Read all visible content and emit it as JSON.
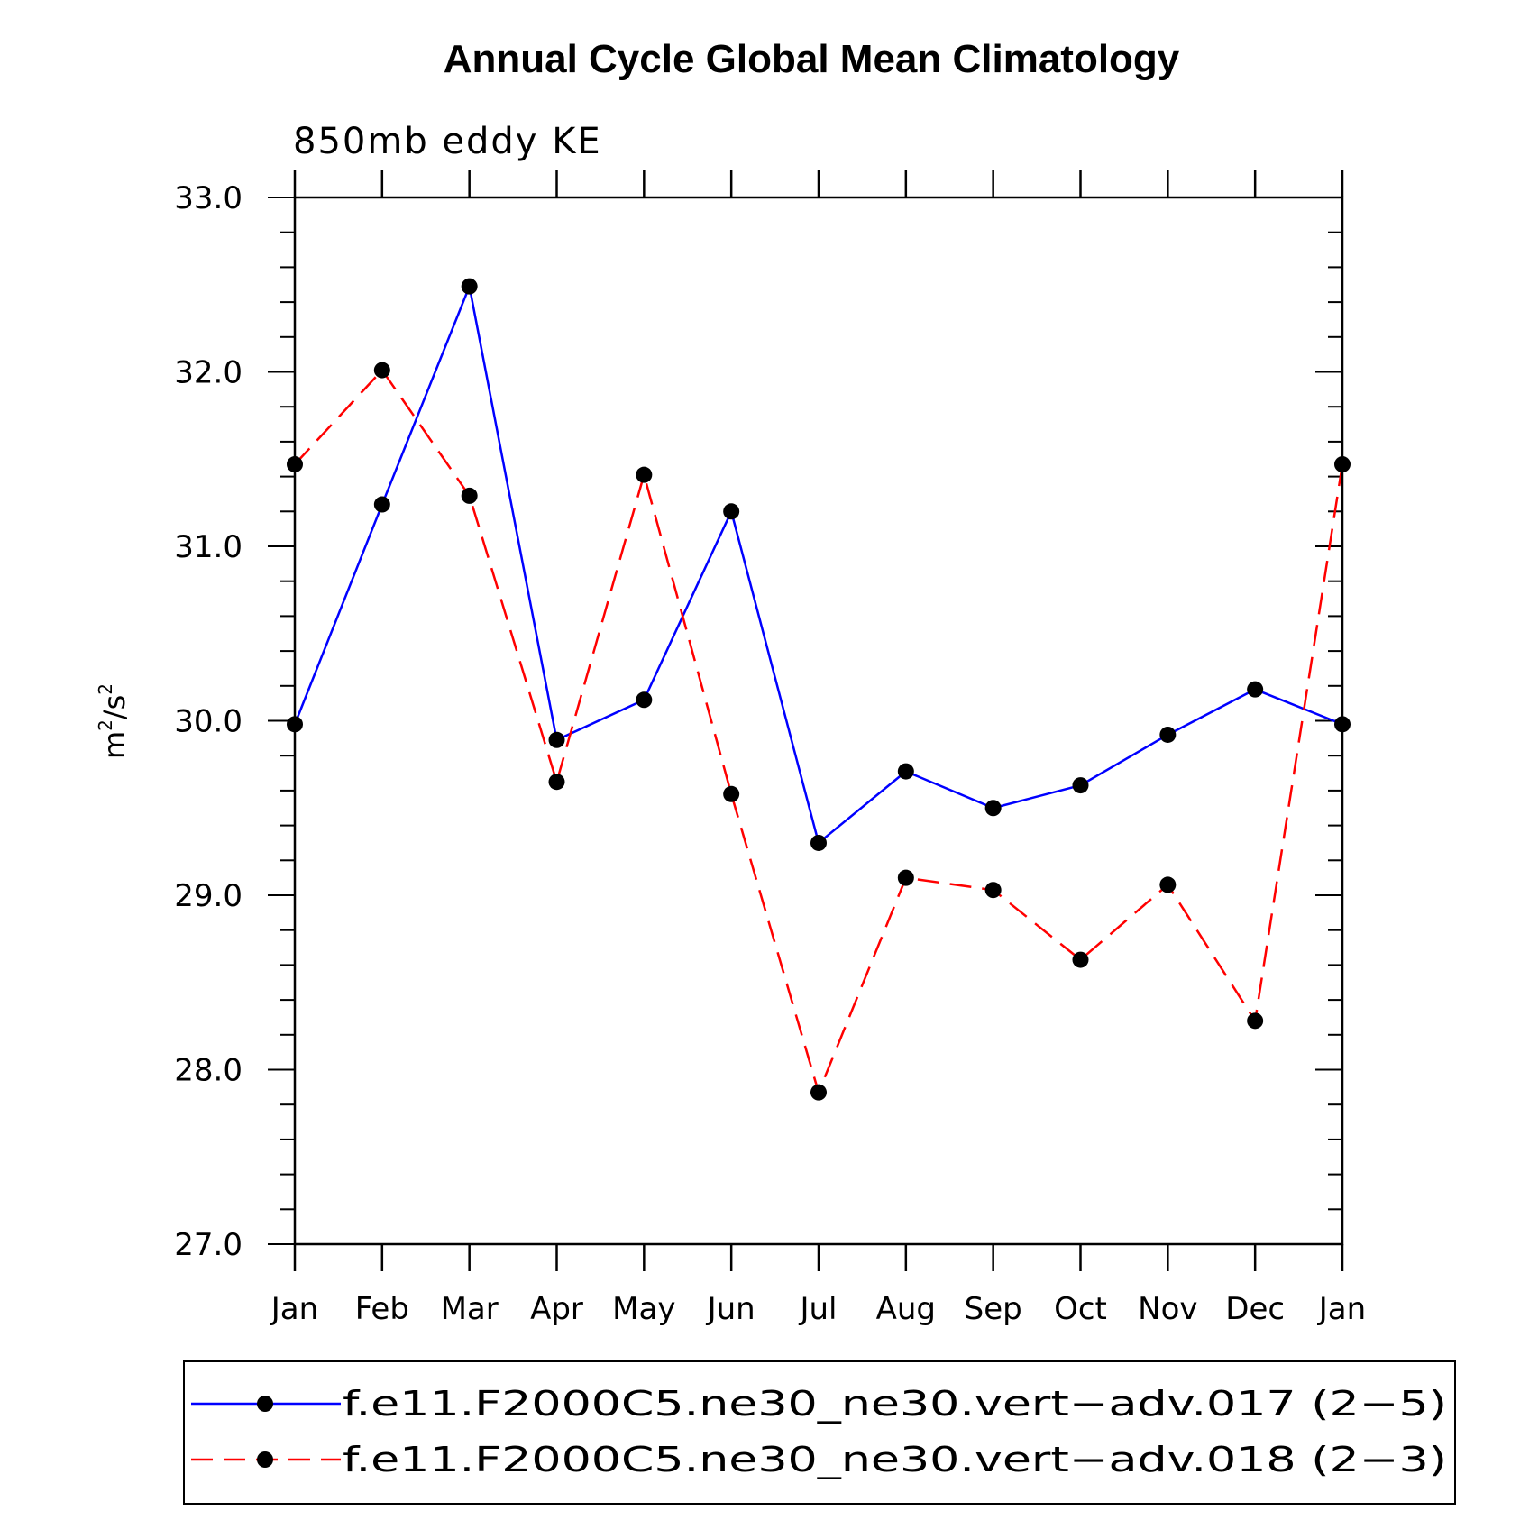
{
  "chart_data": {
    "type": "line",
    "title": "Annual Cycle Global Mean Climatology",
    "subtitle": "850mb eddy KE",
    "ylabel_base": "m",
    "ylabel_exp1": "2",
    "ylabel_mid": "/s",
    "ylabel_exp2": "2",
    "xlabel": "",
    "categories": [
      "Jan",
      "Feb",
      "Mar",
      "Apr",
      "May",
      "Jun",
      "Jul",
      "Aug",
      "Sep",
      "Oct",
      "Nov",
      "Dec",
      "Jan"
    ],
    "ylim": [
      27.0,
      33.0
    ],
    "yticks": [
      "27.0",
      "28.0",
      "29.0",
      "30.0",
      "31.0",
      "32.0",
      "33.0"
    ],
    "grid": false,
    "legend_position": "bottom",
    "series": [
      {
        "name": "f.e11.F2000C5.ne30_ne30.vert−adv.017 (2−5)",
        "color": "#0000ff",
        "style": "solid",
        "values": [
          29.98,
          31.24,
          32.49,
          29.89,
          30.12,
          31.2,
          29.3,
          29.71,
          29.5,
          29.63,
          29.92,
          30.18,
          29.98
        ]
      },
      {
        "name": "f.e11.F2000C5.ne30_ne30.vert−adv.018 (2−3)",
        "color": "#ff0000",
        "style": "dashed",
        "values": [
          31.47,
          32.01,
          31.29,
          29.65,
          31.41,
          29.58,
          27.87,
          29.1,
          29.03,
          28.63,
          29.06,
          28.28,
          31.47
        ]
      }
    ]
  }
}
